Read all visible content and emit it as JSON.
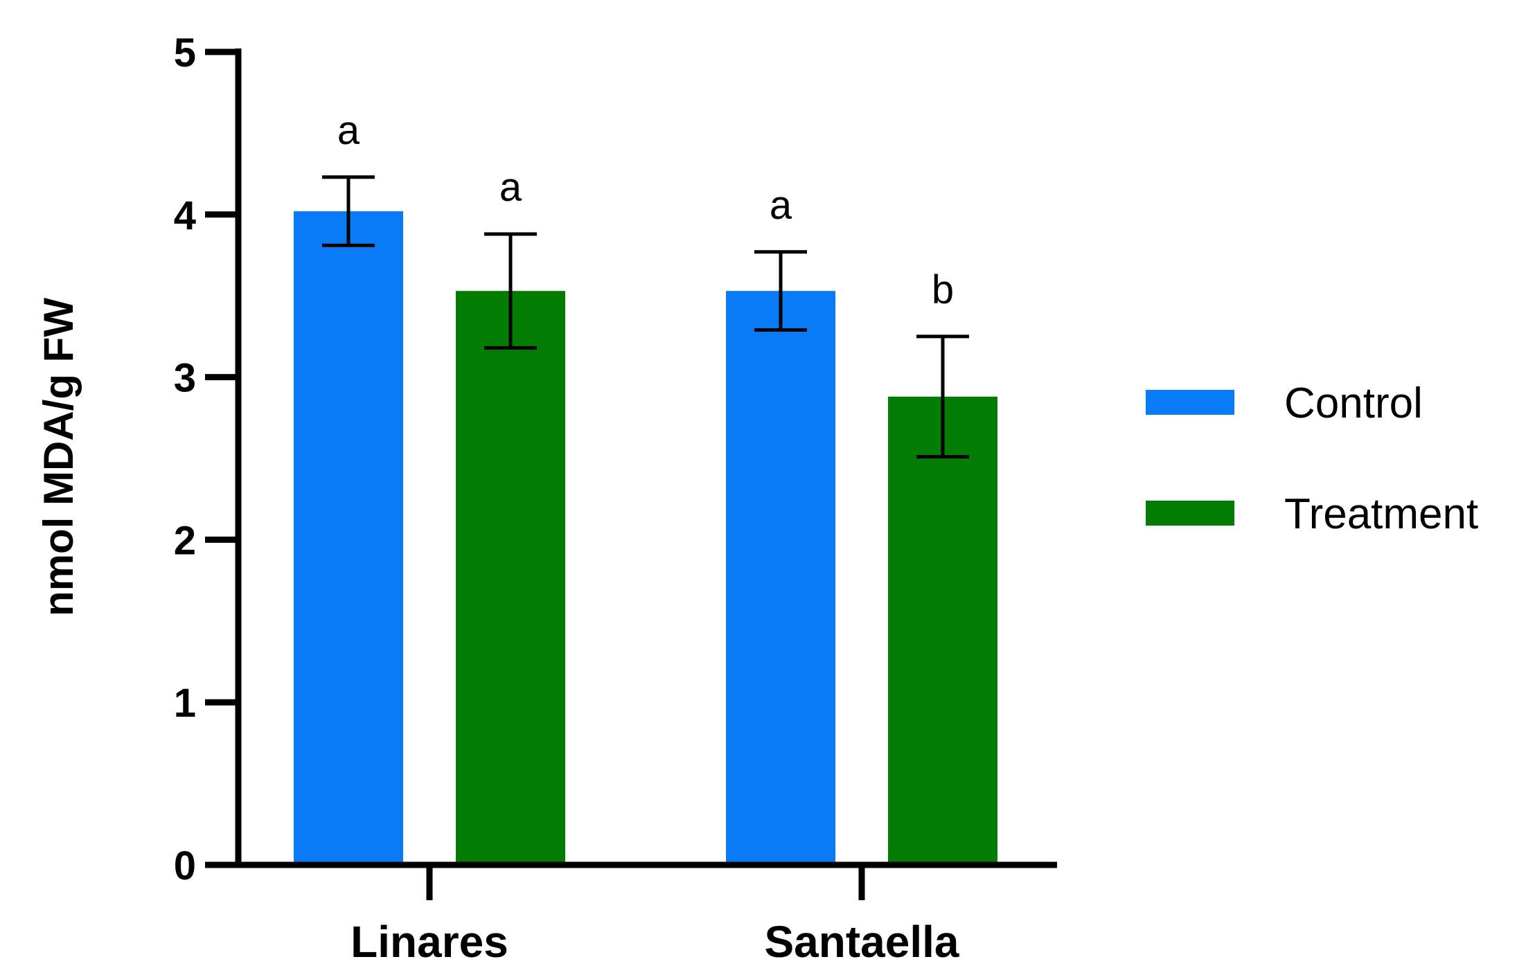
{
  "chart_data": {
    "type": "bar",
    "categories": [
      "Linares",
      "Santaella"
    ],
    "series": [
      {
        "name": "Control",
        "color": "#0a7bf7",
        "values": [
          4.02,
          3.53
        ],
        "errors": [
          0.21,
          0.24
        ],
        "significance": [
          "a",
          "a"
        ]
      },
      {
        "name": "Treatment",
        "color": "#037c03",
        "values": [
          3.53,
          2.88
        ],
        "errors": [
          0.35,
          0.37
        ],
        "significance": [
          "a",
          "b"
        ]
      }
    ],
    "ylabel": "nmol MDA/g FW",
    "xlabel": "",
    "ylim": [
      0,
      5
    ],
    "yticks": [
      "0",
      "1",
      "2",
      "3",
      "4",
      "5"
    ],
    "grid": false,
    "legend_position": "right"
  }
}
